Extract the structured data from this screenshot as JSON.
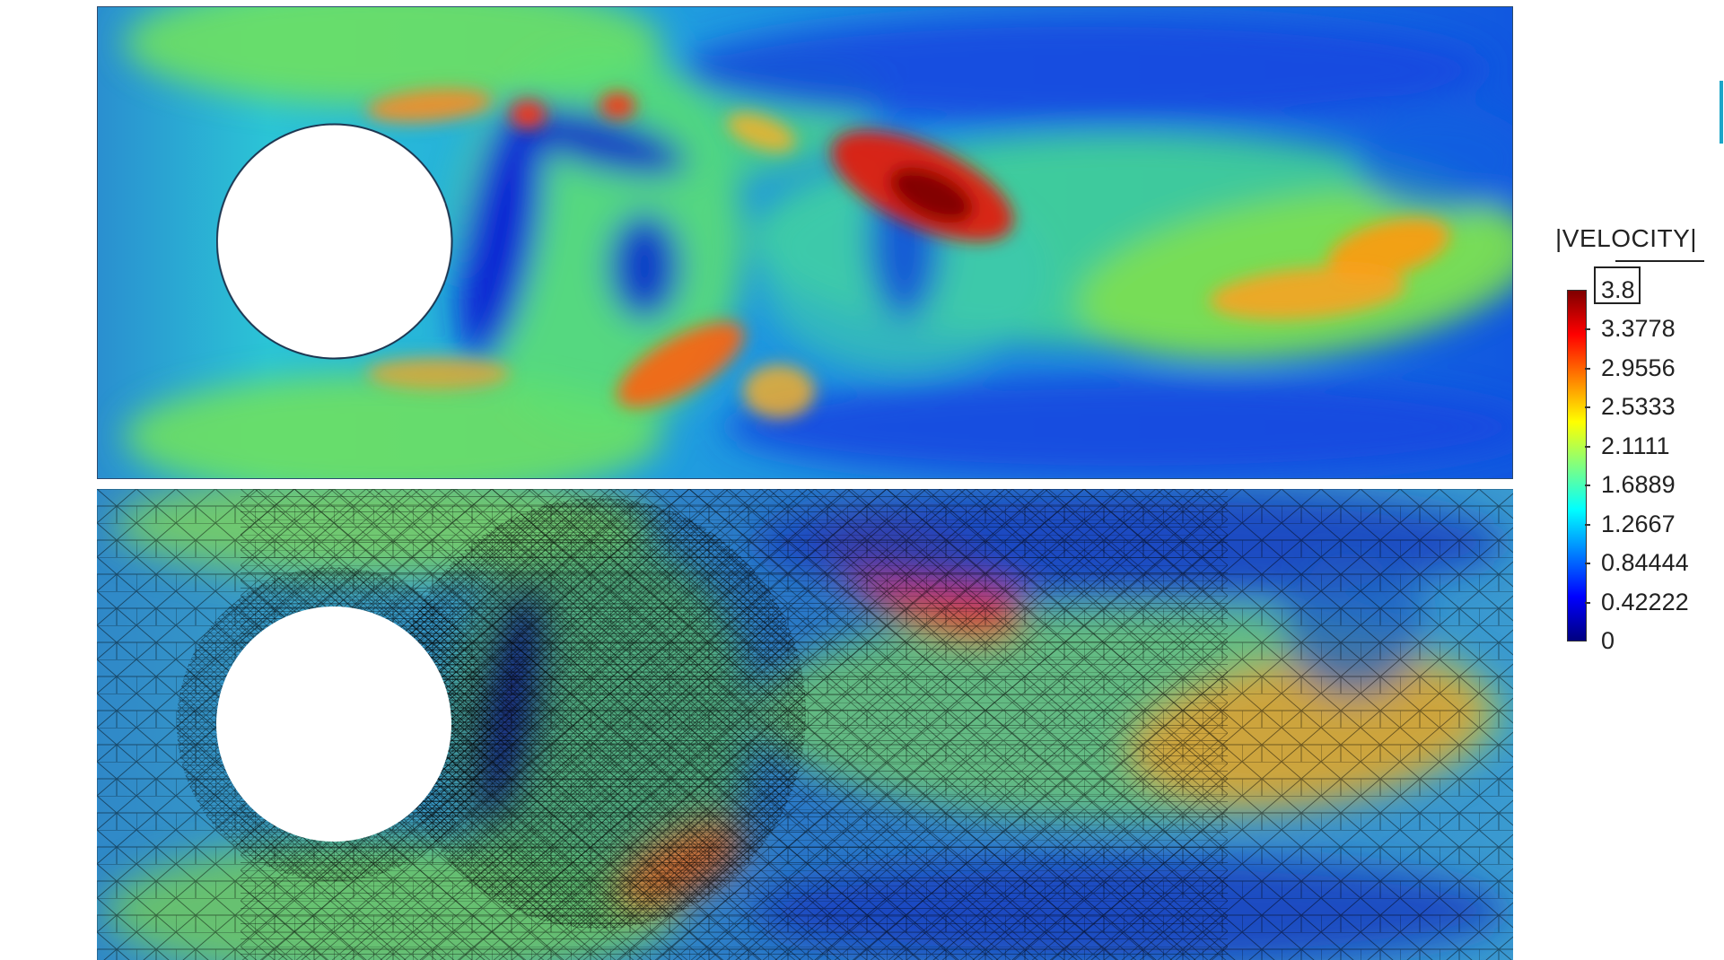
{
  "legend": {
    "title": "|VELOCITY|",
    "ticks": [
      "3.8",
      "3.3778",
      "2.9556",
      "2.5333",
      "2.1111",
      "1.6889",
      "1.2667",
      "0.84444",
      "0.42222",
      "0"
    ],
    "colormap": [
      "#00007f",
      "#0000ff",
      "#0080ff",
      "#00ffff",
      "#80ff80",
      "#ffff00",
      "#ff8000",
      "#ff0000",
      "#7f0000"
    ]
  },
  "views": [
    {
      "content": "velocity magnitude field around cylinder, smooth shading"
    },
    {
      "content": "velocity magnitude field with adaptive triangular mesh overlay"
    }
  ],
  "colors": {
    "background": "#ffffff",
    "cylinder": "#ffffff",
    "mesh": "#000000"
  }
}
